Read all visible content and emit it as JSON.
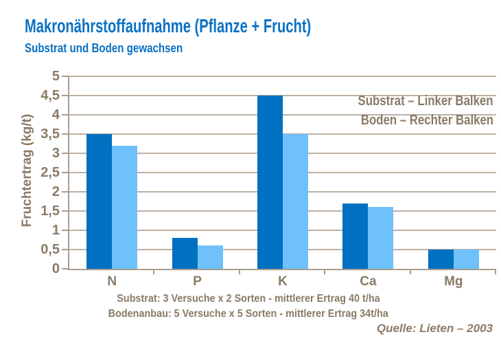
{
  "page": {
    "title": "Makronährstoffaufnahme (Pflanze + Frucht)",
    "subtitle": "Substrat und Boden gewachsen"
  },
  "chart_data": {
    "type": "bar",
    "categories": [
      "N",
      "P",
      "K",
      "Ca",
      "Mg"
    ],
    "series": [
      {
        "name": "Substrat",
        "bar_position": "Linker Balken",
        "color": "#0070c0",
        "values": [
          3.5,
          0.8,
          4.5,
          1.7,
          0.5
        ]
      },
      {
        "name": "Boden",
        "bar_position": "Rechter Balken",
        "color": "#6ec1fb",
        "values": [
          3.2,
          0.6,
          3.5,
          1.6,
          0.5
        ]
      }
    ],
    "xlabel": "",
    "ylabel": "Fruchtertrag (kg/t)",
    "ylim": [
      0,
      5
    ],
    "ytick_step": 0.5,
    "ytick_labels": [
      "0",
      "0,5",
      "1",
      "1,5",
      "2",
      "2,5",
      "3",
      "3,5",
      "4",
      "4,5",
      "5"
    ],
    "legend": [
      "Substrat  – Linker Balken",
      "Boden – Rechter Balken"
    ],
    "legend_position": "top-right",
    "grid": true,
    "grid_color": "#bcb1a4",
    "axis_color": "#a89d8f",
    "text_color": "#8a7a66"
  },
  "footer": {
    "line1": "Substrat: 3 Versuche x 2 Sorten - mittlerer Ertrag 40 t/ha",
    "line2": "Bodenanbau: 5 Versuche x 5 Sorten - mittlerer Ertrag 34t/ha",
    "source": "Quelle:  Lieten – 2003"
  },
  "colors": {
    "title_blue": "#0a71c4",
    "substrat_bar": "#0070c0",
    "boden_bar": "#6ec1fb",
    "text_brown": "#8a7a66"
  }
}
